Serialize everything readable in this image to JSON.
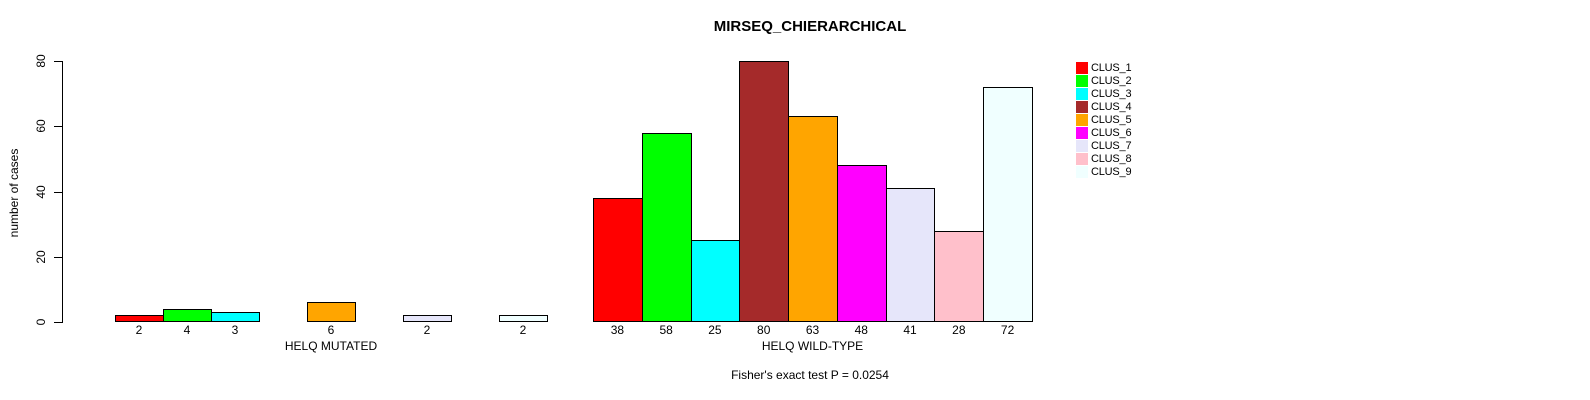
{
  "title": "MIRSEQ_CHIERARCHICAL",
  "ylabel": "number of cases",
  "annotation": "Fisher's exact test P = 0.0254",
  "chart_data": {
    "type": "bar",
    "title": "MIRSEQ_CHIERARCHICAL",
    "xlabel": "",
    "ylabel": "number of cases",
    "ylim": [
      0,
      80
    ],
    "yticks": [
      0,
      20,
      40,
      60,
      80
    ],
    "grid": false,
    "legend_position": "right-outside",
    "categories": [
      "HELQ MUTATED",
      "HELQ WILD-TYPE"
    ],
    "series": [
      {
        "name": "CLUS_1",
        "color": "#FF0000",
        "values": [
          2,
          38
        ]
      },
      {
        "name": "CLUS_2",
        "color": "#00FF00",
        "values": [
          4,
          58
        ]
      },
      {
        "name": "CLUS_3",
        "color": "#00FFFF",
        "values": [
          3,
          25
        ]
      },
      {
        "name": "CLUS_4",
        "color": "#A52A2A",
        "values": [
          0,
          80
        ]
      },
      {
        "name": "CLUS_5",
        "color": "#FFA500",
        "values": [
          6,
          63
        ]
      },
      {
        "name": "CLUS_6",
        "color": "#FF00FF",
        "values": [
          0,
          48
        ]
      },
      {
        "name": "CLUS_7",
        "color": "#E6E6FA",
        "values": [
          2,
          41
        ]
      },
      {
        "name": "CLUS_8",
        "color": "#FFC0CB",
        "values": [
          0,
          28
        ]
      },
      {
        "name": "CLUS_9",
        "color": "#F0FFFF",
        "values": [
          2,
          72
        ]
      }
    ],
    "annotation": "Fisher's exact test P = 0.0254"
  }
}
